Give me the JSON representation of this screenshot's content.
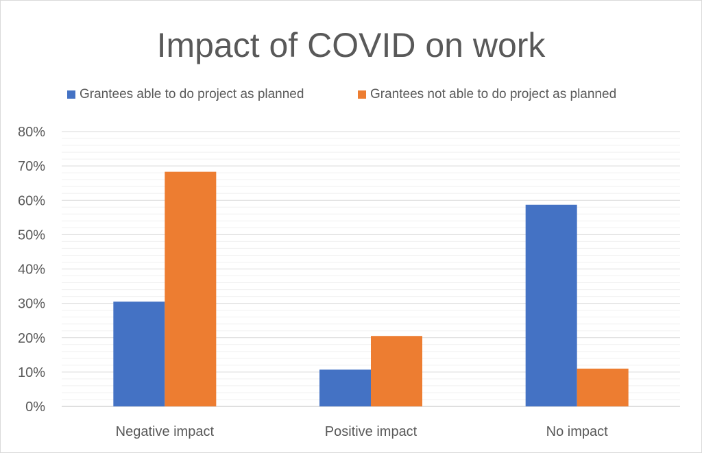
{
  "chart_data": {
    "type": "bar",
    "title": "Impact of COVID on work",
    "categories": [
      "Negative impact",
      "Positive impact",
      "No impact"
    ],
    "series": [
      {
        "name": "Grantees able to do project as planned",
        "color": "#4472c4",
        "values": [
          30.5,
          10.7,
          58.7
        ]
      },
      {
        "name": "Grantees not able to do project as planned",
        "color": "#ed7d31",
        "values": [
          68.3,
          20.5,
          11.0
        ]
      }
    ],
    "ylim": [
      0,
      80
    ],
    "yticks": [
      "0%",
      "10%",
      "20%",
      "30%",
      "40%",
      "50%",
      "60%",
      "70%",
      "80%"
    ],
    "grid": true,
    "legend": "top"
  }
}
